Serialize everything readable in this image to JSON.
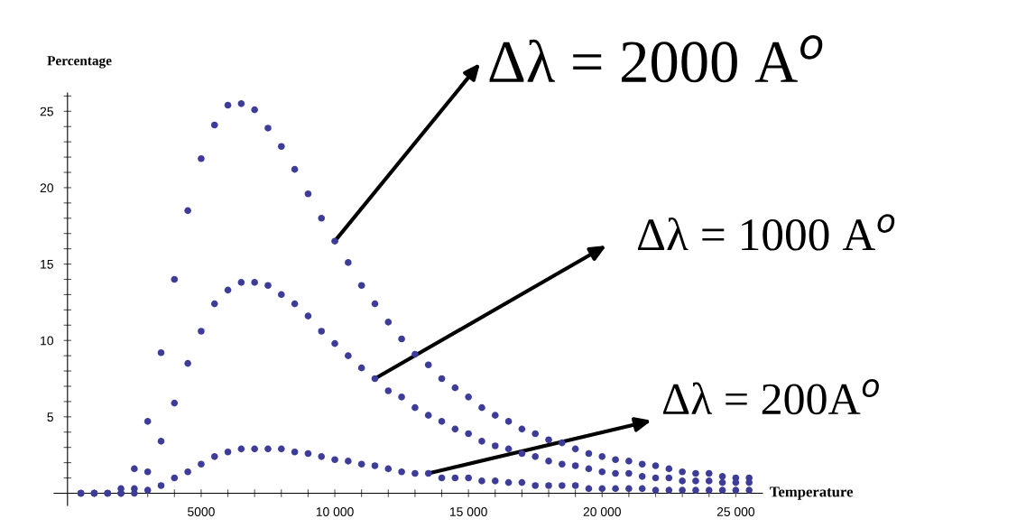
{
  "chart_data": {
    "type": "scatter",
    "xlabel": "Temperature",
    "ylabel": "Percentage",
    "x": [
      500,
      1000,
      1500,
      2000,
      2500,
      3000,
      3500,
      4000,
      4500,
      5000,
      5500,
      6000,
      6500,
      7000,
      7500,
      8000,
      8500,
      9000,
      9500,
      10000,
      10500,
      11000,
      11500,
      12000,
      12500,
      13000,
      13500,
      14000,
      14500,
      15000,
      15500,
      16000,
      16500,
      17000,
      17500,
      18000,
      18500,
      19000,
      19500,
      20000,
      20500,
      21000,
      21500,
      22000,
      22500,
      23000,
      23500,
      24000,
      24500,
      25000,
      25500
    ],
    "series": [
      {
        "color": "#3d3d99",
        "values": [
          0,
          0,
          0,
          0.3,
          1.6,
          4.7,
          9.2,
          14.0,
          18.5,
          21.9,
          24.1,
          25.4,
          25.5,
          25.1,
          23.9,
          22.7,
          21.2,
          19.6,
          18.0,
          16.5,
          15.1,
          13.6,
          12.4,
          11.2,
          10.1,
          9.1,
          8.4,
          7.5,
          6.9,
          6.3,
          5.6,
          5.1,
          4.7,
          4.2,
          3.9,
          3.5,
          3.3,
          2.9,
          2.6,
          2.4,
          2.2,
          2.1,
          1.9,
          1.8,
          1.6,
          1.4,
          1.3,
          1.3,
          1.1,
          1.0,
          1.0
        ]
      },
      {
        "color": "#3d3d99",
        "values": [
          0,
          0,
          0,
          0,
          0.3,
          1.4,
          3.4,
          5.9,
          8.5,
          10.6,
          12.4,
          13.3,
          13.8,
          13.8,
          13.6,
          13.0,
          12.4,
          11.6,
          10.6,
          9.8,
          9.0,
          8.2,
          7.5,
          6.7,
          6.3,
          5.6,
          5.1,
          4.7,
          4.2,
          3.9,
          3.4,
          3.1,
          2.9,
          2.6,
          2.4,
          2.1,
          1.9,
          1.8,
          1.6,
          1.4,
          1.3,
          1.3,
          1.1,
          1.0,
          1.0,
          0.8,
          0.8,
          0.8,
          0.7,
          0.7,
          0.7
        ]
      },
      {
        "color": "#3d3d99",
        "values": [
          0,
          0,
          0,
          0,
          0,
          0.2,
          0.5,
          1.0,
          1.4,
          1.9,
          2.4,
          2.7,
          2.9,
          2.9,
          2.9,
          2.9,
          2.7,
          2.6,
          2.4,
          2.2,
          2.1,
          1.9,
          1.8,
          1.6,
          1.4,
          1.3,
          1.3,
          1.0,
          1.0,
          1.0,
          0.8,
          0.8,
          0.7,
          0.7,
          0.5,
          0.5,
          0.5,
          0.5,
          0.3,
          0.3,
          0.3,
          0.3,
          0.3,
          0.2,
          0.2,
          0.2,
          0.2,
          0.2,
          0.2,
          0.2,
          0.2
        ]
      }
    ],
    "marker": "circle",
    "xlim": [
      -500,
      26000
    ],
    "ylim": [
      -0.8,
      26.2
    ],
    "xticks": [
      {
        "value": 1000,
        "label": null
      },
      {
        "value": 2000,
        "label": null
      },
      {
        "value": 3000,
        "label": null
      },
      {
        "value": 4000,
        "label": null
      },
      5000,
      {
        "value": 6000,
        "label": null
      },
      {
        "value": 7000,
        "label": null
      },
      {
        "value": 8000,
        "label": null
      },
      {
        "value": 9000,
        "label": null
      },
      {
        "value": 10000,
        "label": "10 000"
      },
      {
        "value": 11000,
        "label": null
      },
      {
        "value": 12000,
        "label": null
      },
      {
        "value": 13000,
        "label": null
      },
      {
        "value": 14000,
        "label": null
      },
      {
        "value": 15000,
        "label": "15 000"
      },
      {
        "value": 16000,
        "label": null
      },
      {
        "value": 17000,
        "label": null
      },
      {
        "value": 18000,
        "label": null
      },
      {
        "value": 19000,
        "label": null
      },
      {
        "value": 20000,
        "label": "20 000"
      },
      {
        "value": 21000,
        "label": null
      },
      {
        "value": 22000,
        "label": null
      },
      {
        "value": 23000,
        "label": null
      },
      {
        "value": 24000,
        "label": null
      },
      {
        "value": 25000,
        "label": "25 000"
      }
    ],
    "yticks": [
      {
        "value": 1,
        "label": null
      },
      {
        "value": 2,
        "label": null
      },
      {
        "value": 3,
        "label": null
      },
      {
        "value": 4,
        "label": null
      },
      5,
      {
        "value": 6,
        "label": null
      },
      {
        "value": 7,
        "label": null
      },
      {
        "value": 8,
        "label": null
      },
      {
        "value": 9,
        "label": null
      },
      10,
      {
        "value": 11,
        "label": null
      },
      {
        "value": 12,
        "label": null
      },
      {
        "value": 13,
        "label": null
      },
      {
        "value": 14,
        "label": null
      },
      15,
      {
        "value": 16,
        "label": null
      },
      {
        "value": 17,
        "label": null
      },
      {
        "value": 18,
        "label": null
      },
      {
        "value": 19,
        "label": null
      },
      20,
      {
        "value": 21,
        "label": null
      },
      {
        "value": 22,
        "label": null
      },
      {
        "value": 23,
        "label": null
      },
      {
        "value": 24,
        "label": null
      },
      25,
      {
        "value": 26,
        "label": null
      }
    ],
    "grid": false,
    "legend": false,
    "annotations": [
      {
        "text": "Δλ = 2000 A$^{o}$",
        "x": 10000,
        "y": 16.5
      },
      {
        "text": "Δλ = 1000 A$^{o}$",
        "x": 11500,
        "y": 7.5
      },
      {
        "text": "Δλ = 200A$^{o}$",
        "x": 13500,
        "y": 1.3
      }
    ]
  }
}
